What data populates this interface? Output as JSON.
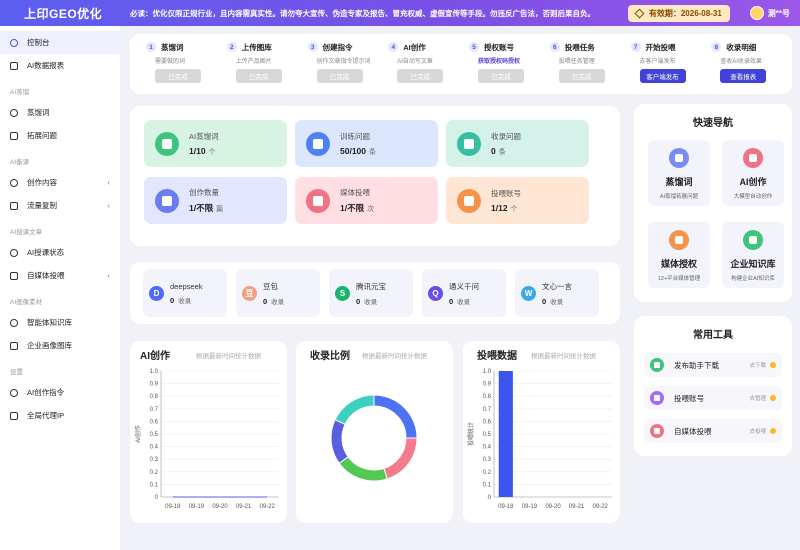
{
  "header": {
    "logo": "上印GEO优化",
    "notice": "必读：优化仅限正规行业，且内容需真实性。请勿夸大宣传、伪造专家及报告、冒充权威、虚假宣传等手段。勿违反广告法，否则后果自负。",
    "expiry": "有效期：2026-08-31",
    "user": "测**号",
    "accent": "#5b5ff0"
  },
  "sidebar": [
    {
      "type": "item",
      "label": "控制台",
      "icon": "dashboard-icon",
      "active": true
    },
    {
      "type": "item",
      "label": "AI数据报表",
      "icon": "report-icon"
    },
    {
      "type": "group",
      "label": "AI蒸馏"
    },
    {
      "type": "item",
      "label": "蒸馏词",
      "icon": "document-icon"
    },
    {
      "type": "item",
      "label": "拓展问题",
      "icon": "question-icon"
    },
    {
      "type": "group",
      "label": "AI备课"
    },
    {
      "type": "item",
      "label": "创作内容",
      "icon": "edit-icon",
      "arrow": true
    },
    {
      "type": "item",
      "label": "流量复制",
      "icon": "send-icon",
      "arrow": true
    },
    {
      "type": "group",
      "label": "AI授课文章"
    },
    {
      "type": "item",
      "label": "AI授课状态",
      "icon": "search-icon"
    },
    {
      "type": "item",
      "label": "自媒体投喂",
      "icon": "upload-icon",
      "arrow": true
    },
    {
      "type": "group",
      "label": "AI画像素材"
    },
    {
      "type": "item",
      "label": "智能体知识库",
      "icon": "grid-icon"
    },
    {
      "type": "item",
      "label": "企业画像图库",
      "icon": "image-icon"
    },
    {
      "type": "group",
      "label": "设置"
    },
    {
      "type": "item",
      "label": "AI创作指令",
      "icon": "gear-icon"
    },
    {
      "type": "item",
      "label": "全局代理IP",
      "icon": "globe-icon"
    }
  ],
  "steps": [
    {
      "num": "1",
      "title": "蒸馏词",
      "desc": "需要做的词",
      "btn": "已完成",
      "primary": false
    },
    {
      "num": "2",
      "title": "上传图库",
      "desc": "上传产品图片",
      "btn": "已完成",
      "primary": false
    },
    {
      "num": "3",
      "title": "创建指令",
      "desc": "创作文章指令提示词",
      "btn": "已完成",
      "primary": false
    },
    {
      "num": "4",
      "title": "AI创作",
      "desc": "AI自动写文章",
      "btn": "已完成",
      "primary": false
    },
    {
      "num": "5",
      "title": "授权账号",
      "desc": "获取授权码授权",
      "btn": "已完成",
      "primary": false,
      "highlight": true
    },
    {
      "num": "6",
      "title": "投喂任务",
      "desc": "投喂任务管理",
      "btn": "已完成",
      "primary": false
    },
    {
      "num": "7",
      "title": "开始投喂",
      "desc": "去客户端发布",
      "btn": "客户端发布",
      "primary": true
    },
    {
      "num": "8",
      "title": "收录明细",
      "desc": "查收AI收录效果",
      "btn": "查看报表",
      "primary": true
    }
  ],
  "stats": [
    {
      "label": "AI蒸馏词",
      "value": "1/10",
      "unit": "个",
      "bg": "#d6f3e4",
      "color": "#3ec47c",
      "icon": "document-icon"
    },
    {
      "label": "训练问题",
      "value": "50/100",
      "unit": "条",
      "bg": "#dce6ff",
      "color": "#4f82f0",
      "icon": "compass-icon"
    },
    {
      "label": "收录问题",
      "value": "0",
      "unit": "条",
      "bg": "#d4f1ea",
      "color": "#33bfa0",
      "icon": "wallet-icon"
    },
    {
      "label": "创作数量",
      "value": "1/不限",
      "unit": "篇",
      "bg": "#e3e6ff",
      "color": "#6a7cf0",
      "icon": "folder-icon"
    },
    {
      "label": "媒体投喂",
      "value": "1/不限",
      "unit": "次",
      "bg": "#ffdfe3",
      "color": "#f07285",
      "icon": "media-icon"
    },
    {
      "label": "投喂账号",
      "value": "1/12",
      "unit": "个",
      "bg": "#ffe5d3",
      "color": "#f5934a",
      "icon": "user-icon"
    }
  ],
  "ai_platforms": [
    {
      "name": "deepseek",
      "value": "0",
      "unit": "收录",
      "color": "#4d6bfe",
      "icon": "deepseek-icon",
      "glyph": "D"
    },
    {
      "name": "豆包",
      "value": "0",
      "unit": "收录",
      "color": "#f0a080",
      "icon": "doubao-icon",
      "glyph": "豆"
    },
    {
      "name": "腾讯元宝",
      "value": "0",
      "unit": "收录",
      "color": "#19b46e",
      "icon": "yuanbao-icon",
      "glyph": "S"
    },
    {
      "name": "通义千问",
      "value": "0",
      "unit": "收录",
      "color": "#6b4de6",
      "icon": "qwen-icon",
      "glyph": "Q"
    },
    {
      "name": "文心一言",
      "value": "0",
      "unit": "收录",
      "color": "#3aa8e8",
      "icon": "wenxin-icon",
      "glyph": "W"
    }
  ],
  "quick_nav": {
    "title": "快速导航",
    "items": [
      {
        "name": "蒸馏词",
        "desc": "AI蒸馏拓展问题",
        "color": "#7a8cf2",
        "icon": "cloud-icon"
      },
      {
        "name": "AI创作",
        "desc": "大模型自动创作",
        "color": "#f07285",
        "icon": "briefcase-icon"
      },
      {
        "name": "媒体授权",
        "desc": "12+平台媒体管理",
        "color": "#f5934a",
        "icon": "user-icon"
      },
      {
        "name": "企业知识库",
        "desc": "构建企业AI知识库",
        "color": "#3ec47c",
        "icon": "book-icon"
      }
    ]
  },
  "tools": {
    "title": "常用工具",
    "items": [
      {
        "name": "发布助手下载",
        "tag": "去下载",
        "color": "#3ec47c",
        "icon": "download-icon"
      },
      {
        "name": "投喂账号",
        "tag": "去管理",
        "color": "#9b6ff0",
        "icon": "user-icon"
      },
      {
        "name": "自媒体投喂",
        "tag": "去投喂",
        "color": "#f07285",
        "icon": "media-icon"
      }
    ]
  },
  "chart_data": [
    {
      "type": "line",
      "title": "AI创作",
      "subtitle": "根据最新时间统计数据",
      "ylabel": "AI创作",
      "categories": [
        "09-18",
        "09-19",
        "09-20",
        "09-21",
        "09-22"
      ],
      "series": [
        {
          "values": [
            0,
            0,
            0,
            0,
            0
          ]
        }
      ],
      "ylim": [
        0,
        1.0
      ],
      "yticks": [
        "0",
        "0.1",
        "0.2",
        "0.3",
        "0.4",
        "0.5",
        "0.6",
        "0.7",
        "0.8",
        "0.9",
        "1.0"
      ],
      "grid": true
    },
    {
      "type": "pie",
      "title": "收录比例",
      "subtitle": "根据最新时间统计数据",
      "slices": [
        {
          "value": 25,
          "color": "#4d73f5"
        },
        {
          "value": 20,
          "color": "#f47a8c"
        },
        {
          "value": 20,
          "color": "#52c954"
        },
        {
          "value": 17,
          "color": "#5a5fe0"
        },
        {
          "value": 18,
          "color": "#3ccfc2"
        }
      ]
    },
    {
      "type": "bar",
      "title": "投喂数据",
      "subtitle": "根据最新时间统计数据",
      "ylabel": "投喂统计",
      "categories": [
        "09-18",
        "09-19",
        "09-20",
        "09-21",
        "09-22"
      ],
      "values": [
        1,
        0,
        0,
        0,
        0
      ],
      "ylim": [
        0,
        1.0
      ],
      "yticks": [
        "0",
        "0.1",
        "0.2",
        "0.3",
        "0.4",
        "0.5",
        "0.6",
        "0.7",
        "0.8",
        "0.9",
        "1.0"
      ],
      "bar_color": "#3a54ee",
      "grid": true
    }
  ]
}
